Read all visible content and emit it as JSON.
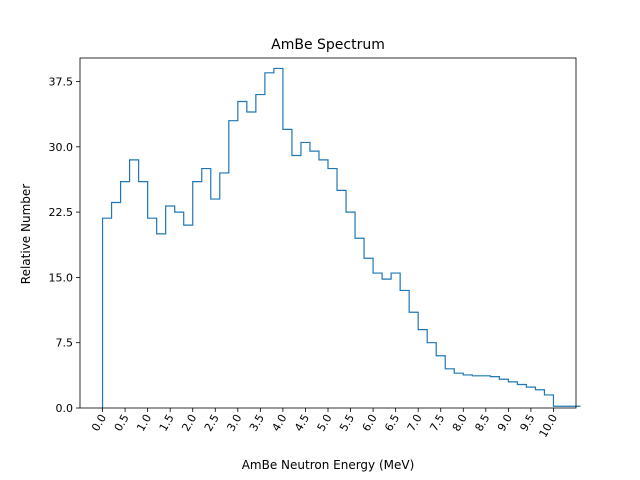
{
  "chart_data": {
    "type": "line",
    "title": "AmBe Spectrum",
    "xlabel": "AmBe Neutron Energy (MeV)",
    "ylabel": "Relative Number",
    "xlim": [
      -0.5,
      10.5
    ],
    "ylim": [
      0,
      40.2
    ],
    "x_ticks": [
      0.0,
      0.5,
      1.0,
      1.5,
      2.0,
      2.5,
      3.0,
      3.5,
      4.0,
      4.5,
      5.0,
      5.5,
      6.0,
      6.5,
      7.0,
      7.5,
      8.0,
      8.5,
      9.0,
      9.5,
      10.0
    ],
    "x_tick_labels": [
      "0.0",
      "0.5",
      "1.0",
      "1.5",
      "2.0",
      "2.5",
      "3.0",
      "3.5",
      "4.0",
      "4.5",
      "5.0",
      "5.5",
      "6.0",
      "6.5",
      "7.0",
      "7.5",
      "8.0",
      "8.5",
      "9.0",
      "9.5",
      "10.0"
    ],
    "y_ticks": [
      0.0,
      7.5,
      15.0,
      22.5,
      30.0,
      37.5
    ],
    "y_tick_labels": [
      "0.0",
      "7.5",
      "15.0",
      "22.5",
      "30.0",
      "37.5"
    ],
    "grid": false,
    "color": "#1f77b4",
    "series": [
      {
        "style": "steps-post",
        "x": [
          0.0,
          0.2,
          0.4,
          0.6,
          0.8,
          1.0,
          1.2,
          1.4,
          1.6,
          1.8,
          2.0,
          2.2,
          2.4,
          2.6,
          2.8,
          3.0,
          3.2,
          3.4,
          3.6,
          3.8,
          4.0,
          4.2,
          4.4,
          4.6,
          4.8,
          5.0,
          5.2,
          5.4,
          5.6,
          5.8,
          6.0,
          6.2,
          6.4,
          6.6,
          6.8,
          7.0,
          7.2,
          7.4,
          7.6,
          7.8,
          8.0,
          8.2,
          8.4,
          8.6,
          8.8,
          9.0,
          9.2,
          9.4,
          9.6,
          9.8,
          10.0,
          10.4
        ],
        "y": [
          21.8,
          23.6,
          26.0,
          28.5,
          26.0,
          21.8,
          20.0,
          23.2,
          22.5,
          21.0,
          26.0,
          27.5,
          24.0,
          27.0,
          33.0,
          35.2,
          34.0,
          36.0,
          38.5,
          39.0,
          32.0,
          29.0,
          30.5,
          29.5,
          28.5,
          27.5,
          25.0,
          22.5,
          19.5,
          17.2,
          15.5,
          14.8,
          15.5,
          13.5,
          11.0,
          9.0,
          7.5,
          6.0,
          4.5,
          4.0,
          3.8,
          3.7,
          3.7,
          3.6,
          3.3,
          3.0,
          2.7,
          2.4,
          2.1,
          1.5,
          0.2,
          0.2
        ]
      }
    ]
  }
}
